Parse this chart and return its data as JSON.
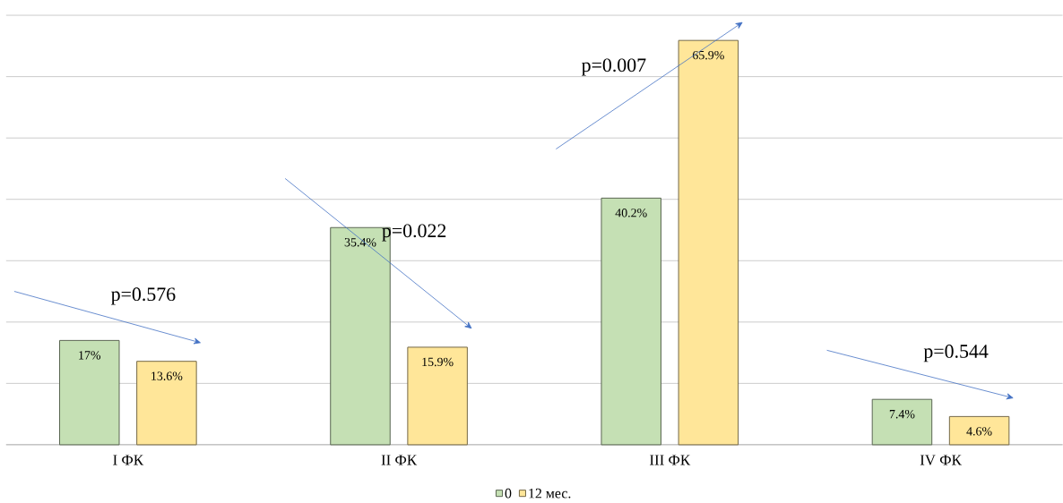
{
  "chart_data": {
    "type": "bar",
    "categories": [
      "I ФК",
      "II ФК",
      "III ФК",
      "IV ФК"
    ],
    "series": [
      {
        "name": "0",
        "color": "#c5e0b4",
        "values": [
          17,
          35.4,
          40.2,
          7.4
        ],
        "value_labels": [
          "17%",
          "35.4%",
          "40.2%",
          "7.4%"
        ]
      },
      {
        "name": "12 мес.",
        "color": "#ffe699",
        "values": [
          13.6,
          15.9,
          65.9,
          4.6
        ],
        "value_labels": [
          "13.6%",
          "15.9%",
          "65.9%",
          "4.6%"
        ]
      }
    ],
    "grid": "y",
    "legend": "bottom",
    "tick_labels": "x",
    "annotations": [
      "p=0.576",
      "p=0.022",
      "p=0.007",
      "p=0.544"
    ]
  }
}
